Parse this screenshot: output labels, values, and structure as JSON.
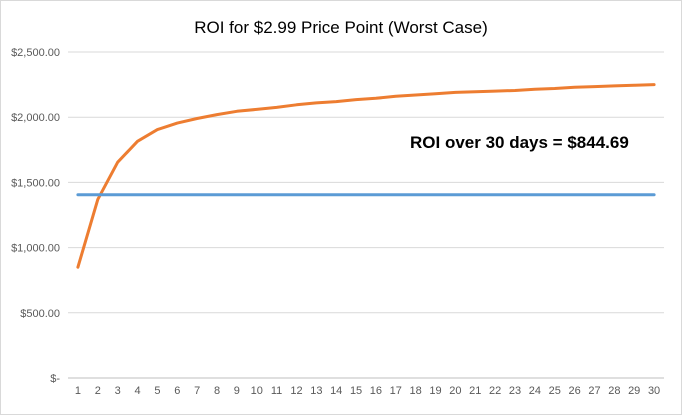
{
  "chart_data": {
    "type": "line",
    "title": "ROI for $2.99 Price Point (Worst Case)",
    "xlabel": "",
    "ylabel": "",
    "x": [
      1,
      2,
      3,
      4,
      5,
      6,
      7,
      8,
      9,
      10,
      11,
      12,
      13,
      14,
      15,
      16,
      17,
      18,
      19,
      20,
      21,
      22,
      23,
      24,
      25,
      26,
      27,
      28,
      29,
      30
    ],
    "ylim": [
      0,
      2500
    ],
    "yticks": [
      0,
      500,
      1000,
      1500,
      2000,
      2500
    ],
    "ytick_labels": [
      "$-",
      "$500.00",
      "$1,000.00",
      "$1,500.00",
      "$2,000.00",
      "$2,500.00"
    ],
    "grid": true,
    "legend": "none",
    "series": [
      {
        "color": "#ed7d31",
        "values": [
          850,
          1370,
          1655,
          1815,
          1905,
          1955,
          1990,
          2020,
          2045,
          2060,
          2075,
          2095,
          2110,
          2120,
          2135,
          2145,
          2160,
          2170,
          2180,
          2190,
          2195,
          2200,
          2205,
          2215,
          2220,
          2230,
          2235,
          2240,
          2245,
          2250
        ]
      },
      {
        "color": "#5b9bd5",
        "values": [
          1405,
          1405,
          1405,
          1405,
          1405,
          1405,
          1405,
          1405,
          1405,
          1405,
          1405,
          1405,
          1405,
          1405,
          1405,
          1405,
          1405,
          1405,
          1405,
          1405,
          1405,
          1405,
          1405,
          1405,
          1405,
          1405,
          1405,
          1405,
          1405,
          1405
        ]
      }
    ],
    "annotation": "ROI over 30 days = $844.69"
  }
}
